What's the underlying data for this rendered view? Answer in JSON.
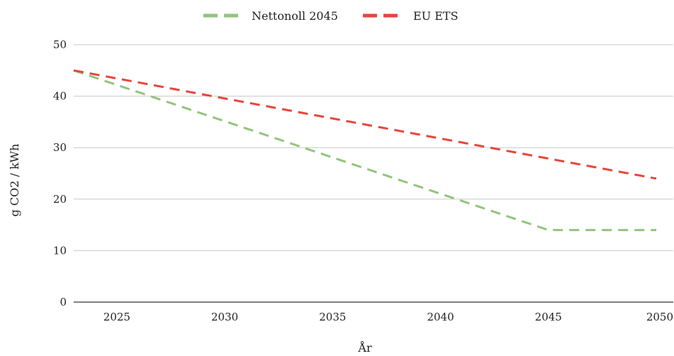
{
  "chart_data": {
    "type": "line",
    "xlabel": "År",
    "ylabel": "g CO2 / kWh",
    "x_ticks": [
      "2025",
      "2030",
      "2035",
      "2040",
      "2045",
      "2050"
    ],
    "y_ticks": [
      "0",
      "10",
      "20",
      "30",
      "40",
      "50"
    ],
    "xlim": [
      2023,
      2050
    ],
    "ylim": [
      0,
      50
    ],
    "grid": "horizontal",
    "legend_position": "top",
    "series": [
      {
        "name": "Nettonoll 2045",
        "color": "#93c47d",
        "dash": "dashed",
        "x": [
          2023,
          2045,
          2050
        ],
        "y": [
          45,
          14,
          14
        ]
      },
      {
        "name": "EU ETS",
        "color": "#e8453c",
        "dash": "dashed",
        "x": [
          2023,
          2050
        ],
        "y": [
          45,
          24
        ]
      }
    ]
  }
}
